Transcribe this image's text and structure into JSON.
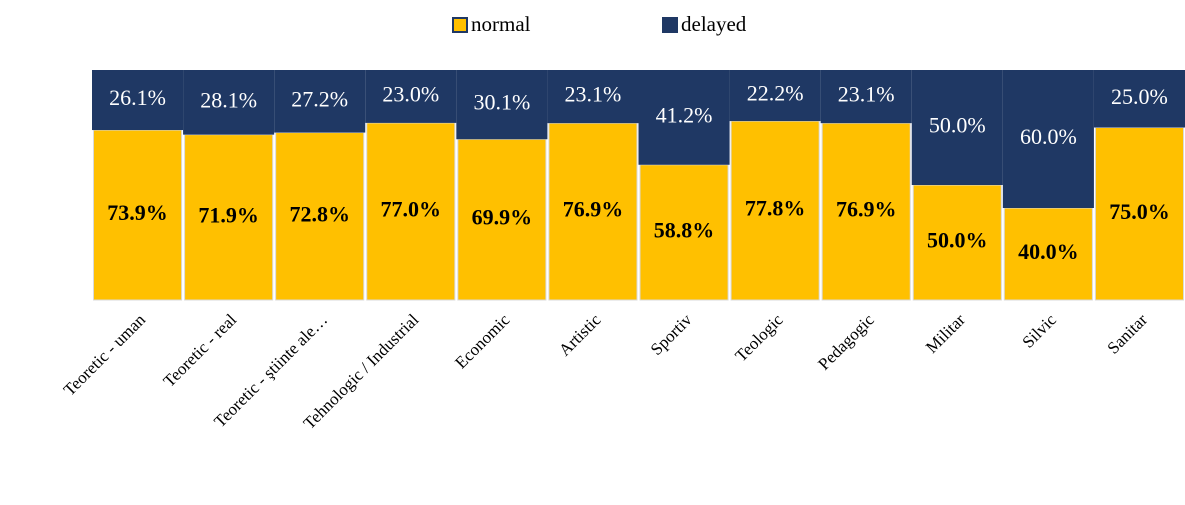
{
  "chart_data": {
    "type": "stacked_bar",
    "categories": [
      "Teoretic - uman",
      "Teoretic - real",
      "Teoretic - ştiinte ale…",
      "Tehnologic / Industrial",
      "Economic",
      "Artistic",
      "Sportiv",
      "Teologic",
      "Pedagogic",
      "Militar",
      "Silvic",
      "Sanitar"
    ],
    "series": [
      {
        "name": "normal",
        "color": "#ffc000",
        "values": [
          73.9,
          71.9,
          72.8,
          77,
          69.9,
          76.9,
          58.8,
          77.8,
          76.9,
          50,
          40,
          75
        ],
        "value_labels": [
          "73.9%",
          "71.9%",
          "72.8%",
          "77.0%",
          "69.9%",
          "76.9%",
          "58.8%",
          "77.8%",
          "76.9%",
          "50.0%",
          "40.0%",
          "75.0%"
        ]
      },
      {
        "name": "delayed",
        "color": "#1f3864",
        "values": [
          26.1,
          28.1,
          27.2,
          23,
          30.1,
          23.1,
          41.2,
          22.2,
          23.1,
          50,
          60,
          25
        ],
        "value_labels": [
          "26.1%",
          "28.1%",
          "27.2%",
          "23.0%",
          "30.1%",
          "23.1%",
          "41.2%",
          "22.2%",
          "23.1%",
          "50.0%",
          "60.0%",
          "25.0%"
        ]
      }
    ],
    "ylim": [
      0,
      100
    ],
    "legend": "top"
  }
}
